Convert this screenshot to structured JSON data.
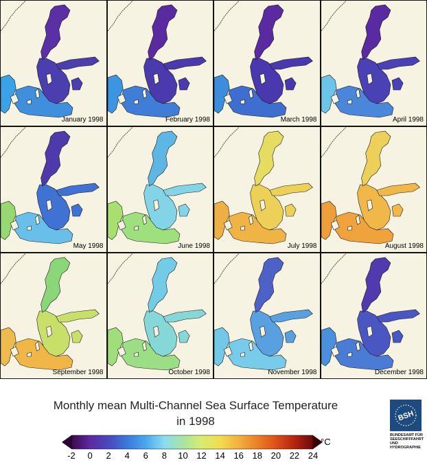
{
  "panels": [
    {
      "label": "January 1998",
      "colors": {
        "north": "#5a30a4",
        "central": "#4b3fb0",
        "south": "#3f8fdd",
        "west": "#3aa2e6"
      }
    },
    {
      "label": "February 1998",
      "colors": {
        "north": "#5a2aa0",
        "central": "#4a3aae",
        "south": "#3f7dd6",
        "west": "#3c95e0"
      }
    },
    {
      "label": "March 1998",
      "colors": {
        "north": "#5a2aa0",
        "central": "#4a38ae",
        "south": "#3d6ed0",
        "west": "#3c8ddc"
      }
    },
    {
      "label": "April 1998",
      "colors": {
        "north": "#5a2aa0",
        "central": "#4a42b4",
        "south": "#4a86da",
        "west": "#6cc4e8"
      }
    },
    {
      "label": "May 1998",
      "colors": {
        "north": "#4f3aac",
        "central": "#3f72d2",
        "south": "#68c0ea",
        "west": "#98d872"
      }
    },
    {
      "label": "June 1998",
      "colors": {
        "north": "#5db6e4",
        "central": "#82d4e6",
        "south": "#9ee07e",
        "west": "#a8e070"
      }
    },
    {
      "label": "July 1998",
      "colors": {
        "north": "#e6dc62",
        "central": "#ecd058",
        "south": "#f0b446",
        "west": "#eeb044"
      }
    },
    {
      "label": "August 1998",
      "colors": {
        "north": "#ecd05a",
        "central": "#f0b848",
        "south": "#f0a23c",
        "west": "#ee9e3a"
      }
    },
    {
      "label": "September 1998",
      "colors": {
        "north": "#8cd67a",
        "central": "#c8e06a",
        "south": "#f0b648",
        "west": "#eebc4e"
      }
    },
    {
      "label": "October 1998",
      "colors": {
        "north": "#72cce8",
        "central": "#86d8d8",
        "south": "#9cde86",
        "west": "#a0de7c"
      }
    },
    {
      "label": "November 1998",
      "colors": {
        "north": "#4d62c6",
        "central": "#58a0e0",
        "south": "#76ccea",
        "west": "#72c8e6"
      }
    },
    {
      "label": "December 1998",
      "colors": {
        "north": "#503aae",
        "central": "#4a56c2",
        "south": "#4a7cd6",
        "west": "#4a90dc"
      }
    }
  ],
  "title_line1": "Monthly mean Multi-Channel Sea Surface Temperature",
  "title_line2": "in 1998",
  "colorbar": {
    "ticks": [
      "-2",
      "0",
      "2",
      "4",
      "6",
      "8",
      "10",
      "12",
      "14",
      "16",
      "18",
      "20",
      "22",
      "24"
    ],
    "unit": "°C",
    "min": -2,
    "max": 24,
    "stops": [
      {
        "value": -2,
        "color": "#3d0a4a"
      },
      {
        "value": 0,
        "color": "#5a2aa0"
      },
      {
        "value": 2,
        "color": "#4a48bc"
      },
      {
        "value": 4,
        "color": "#3a78dc"
      },
      {
        "value": 6,
        "color": "#4aa8ec"
      },
      {
        "value": 8,
        "color": "#8adcf0"
      },
      {
        "value": 10,
        "color": "#a8e4a0"
      },
      {
        "value": 12,
        "color": "#d8ec70"
      },
      {
        "value": 14,
        "color": "#f2dc50"
      },
      {
        "value": 16,
        "color": "#f2b040"
      },
      {
        "value": 18,
        "color": "#ec8028"
      },
      {
        "value": 20,
        "color": "#dc5018"
      },
      {
        "value": 22,
        "color": "#b42410"
      },
      {
        "value": 24,
        "color": "#6a0a0a"
      }
    ]
  },
  "logo": {
    "initials": "BSH",
    "text": "BUNDESAMT FÜR\nSEESCHIFFFAHRT\nUND\nHYDROGRAPHIE"
  }
}
